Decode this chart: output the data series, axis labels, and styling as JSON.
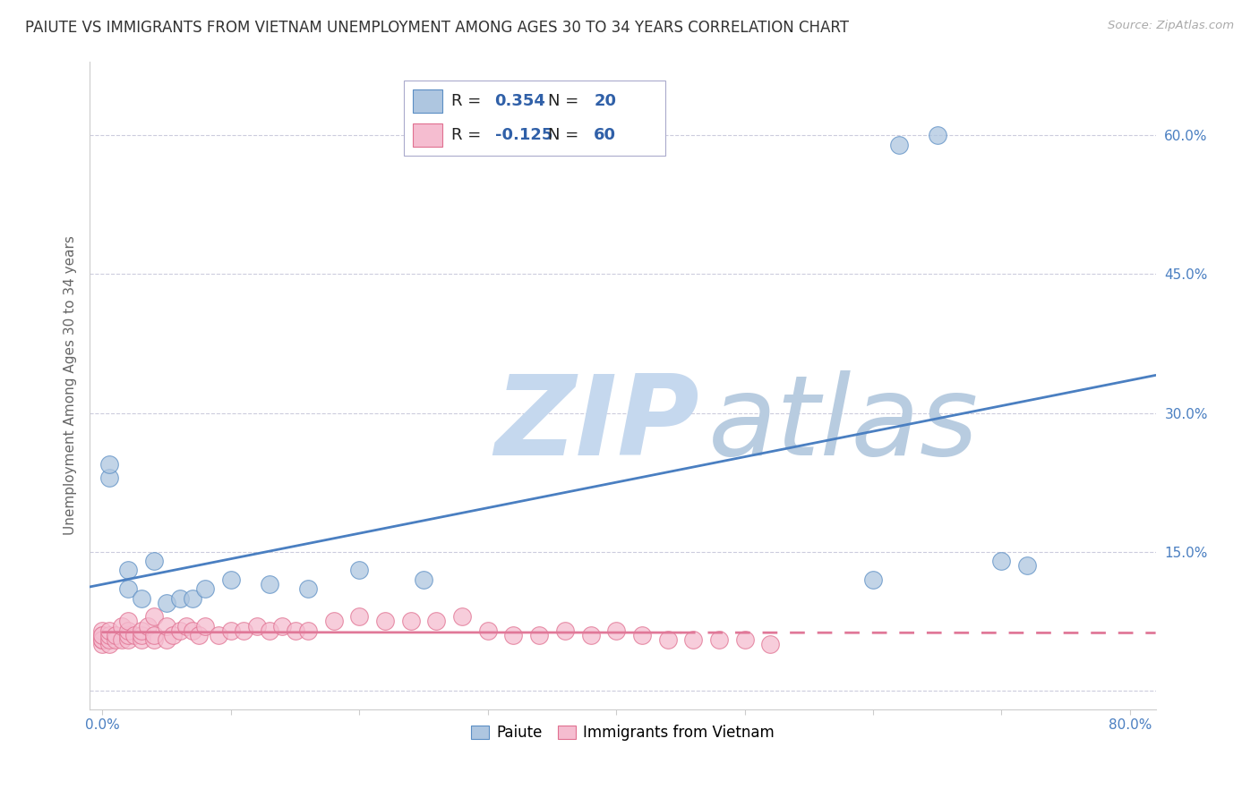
{
  "title": "PAIUTE VS IMMIGRANTS FROM VIETNAM UNEMPLOYMENT AMONG AGES 30 TO 34 YEARS CORRELATION CHART",
  "source": "Source: ZipAtlas.com",
  "ylabel": "Unemployment Among Ages 30 to 34 years",
  "xlim": [
    -0.01,
    0.82
  ],
  "ylim": [
    -0.02,
    0.68
  ],
  "yticks": [
    0.0,
    0.15,
    0.3,
    0.45,
    0.6
  ],
  "yticklabels": [
    "",
    "15.0%",
    "30.0%",
    "45.0%",
    "60.0%"
  ],
  "xtick_positions": [
    0.0,
    0.1,
    0.2,
    0.3,
    0.4,
    0.5,
    0.6,
    0.7,
    0.8
  ],
  "xticklabels_bottom": [
    "0.0%",
    "",
    "",
    "",
    "",
    "",
    "",
    "",
    "80.0%"
  ],
  "paiute_color": "#aec6e0",
  "vietnam_color": "#f5bdd0",
  "paiute_edge_color": "#5b8ec4",
  "vietnam_edge_color": "#e07090",
  "paiute_line_color": "#4a7fc1",
  "vietnam_line_color": "#e07898",
  "paiute_R": 0.354,
  "paiute_N": 20,
  "vietnam_R": -0.125,
  "vietnam_N": 60,
  "watermark_zip": "ZIP",
  "watermark_atlas": "atlas",
  "watermark_color_zip": "#c5d8ee",
  "watermark_color_atlas": "#b8cce0",
  "legend_R_color": "#3060a8",
  "legend_N_color": "#3060a8",
  "ytick_label_color": "#4a7fc1",
  "tick_label_color": "#4a7fc1",
  "paiute_x": [
    0.005,
    0.005,
    0.02,
    0.02,
    0.03,
    0.04,
    0.05,
    0.06,
    0.07,
    0.08,
    0.1,
    0.13,
    0.16,
    0.2,
    0.25,
    0.6,
    0.62,
    0.65,
    0.7,
    0.72
  ],
  "paiute_y": [
    0.23,
    0.245,
    0.13,
    0.11,
    0.1,
    0.14,
    0.095,
    0.1,
    0.1,
    0.11,
    0.12,
    0.115,
    0.11,
    0.13,
    0.12,
    0.12,
    0.59,
    0.6,
    0.14,
    0.135
  ],
  "vietnam_x": [
    0.0,
    0.0,
    0.0,
    0.0,
    0.0,
    0.0,
    0.005,
    0.005,
    0.005,
    0.005,
    0.01,
    0.01,
    0.015,
    0.015,
    0.02,
    0.02,
    0.02,
    0.02,
    0.025,
    0.03,
    0.03,
    0.03,
    0.035,
    0.04,
    0.04,
    0.04,
    0.05,
    0.05,
    0.055,
    0.06,
    0.065,
    0.07,
    0.075,
    0.08,
    0.09,
    0.1,
    0.11,
    0.12,
    0.13,
    0.14,
    0.15,
    0.16,
    0.18,
    0.2,
    0.22,
    0.24,
    0.26,
    0.28,
    0.3,
    0.32,
    0.34,
    0.36,
    0.38,
    0.4,
    0.42,
    0.44,
    0.46,
    0.48,
    0.5,
    0.52
  ],
  "vietnam_y": [
    0.05,
    0.055,
    0.06,
    0.065,
    0.055,
    0.06,
    0.05,
    0.055,
    0.06,
    0.065,
    0.055,
    0.06,
    0.055,
    0.07,
    0.055,
    0.06,
    0.065,
    0.075,
    0.06,
    0.055,
    0.06,
    0.065,
    0.07,
    0.055,
    0.06,
    0.08,
    0.055,
    0.07,
    0.06,
    0.065,
    0.07,
    0.065,
    0.06,
    0.07,
    0.06,
    0.065,
    0.065,
    0.07,
    0.065,
    0.07,
    0.065,
    0.065,
    0.075,
    0.08,
    0.075,
    0.075,
    0.075,
    0.08,
    0.065,
    0.06,
    0.06,
    0.065,
    0.06,
    0.065,
    0.06,
    0.055,
    0.055,
    0.055,
    0.055,
    0.05
  ],
  "background_color": "#ffffff",
  "grid_color": "#ccccdd",
  "title_fontsize": 12,
  "axis_label_fontsize": 11,
  "tick_fontsize": 11,
  "legend_fontsize": 13
}
